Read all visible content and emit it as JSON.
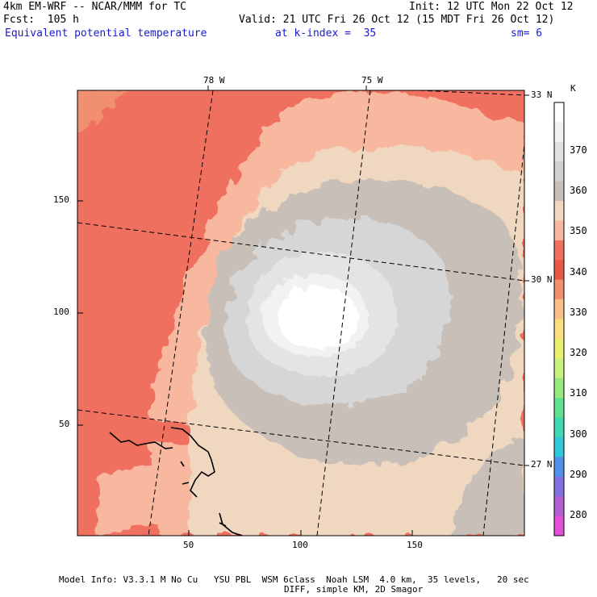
{
  "header": {
    "line1_left": "4km EM-WRF -- NCAR/MMM for TC",
    "line1_right": "Init: 12 UTC Mon 22 Oct 12",
    "line2_left": "Fcst:  105 h",
    "line2_right": "Valid: 21 UTC Fri 26 Oct 12 (15 MDT Fri 26 Oct 12)",
    "line3_field": "Equivalent potential temperature",
    "line3_level": "at k-index =  35",
    "line3_sm": "sm= 6"
  },
  "map": {
    "lon_labels": [
      "78 W",
      "75 W"
    ],
    "lat_labels": [
      "33 N",
      "30 N",
      "27 N"
    ],
    "x_ticks": [
      "50",
      "100",
      "150"
    ],
    "y_ticks": [
      "150",
      "100",
      "50"
    ]
  },
  "colorbar": {
    "unit": "K",
    "labels": [
      "370",
      "360",
      "350",
      "340",
      "330",
      "320",
      "310",
      "300",
      "290",
      "280"
    ],
    "colors": [
      "#ffffff",
      "#f2f2f2",
      "#e0e0e0",
      "#d0d0d0",
      "#c8c0b8",
      "#f0d8c0",
      "#f8b8a0",
      "#f07060",
      "#e85848",
      "#f09070",
      "#f8c088",
      "#f8e080",
      "#e8f070",
      "#c8f080",
      "#98e880",
      "#60e090",
      "#40d8b0",
      "#30c8d8",
      "#5090e8",
      "#8070e0",
      "#b060d0",
      "#e050d8"
    ]
  },
  "footer": {
    "line1": "Model Info: V3.3.1 M No Cu   YSU PBL  WSM 6class  Noah LSM  4.0 km,  35 levels,   20 sec",
    "line2": "DIFF, simple KM, 2D Smagor"
  }
}
